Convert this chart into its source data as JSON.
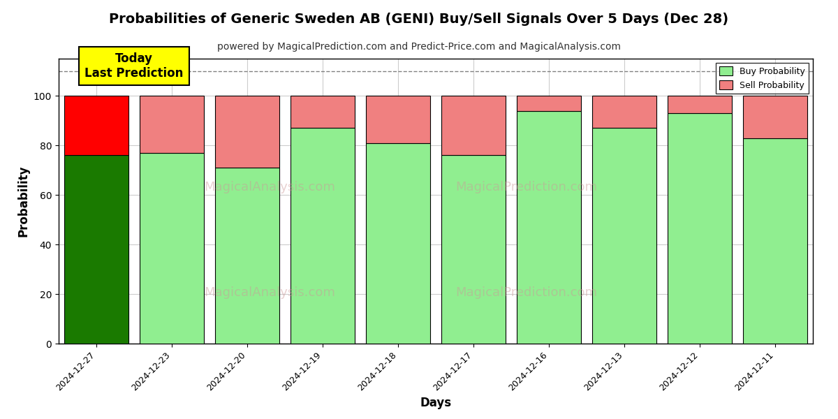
{
  "title": "Probabilities of Generic Sweden AB (GENI) Buy/Sell Signals Over 5 Days (Dec 28)",
  "subtitle": "powered by MagicalPrediction.com and Predict-Price.com and MagicalAnalysis.com",
  "xlabel": "Days",
  "ylabel": "Probability",
  "dates": [
    "2024-12-27",
    "2024-12-23",
    "2024-12-20",
    "2024-12-19",
    "2024-12-18",
    "2024-12-17",
    "2024-12-16",
    "2024-12-13",
    "2024-12-12",
    "2024-12-11"
  ],
  "buy_values": [
    76,
    77,
    71,
    87,
    81,
    76,
    94,
    87,
    93,
    83
  ],
  "sell_values": [
    24,
    23,
    29,
    13,
    19,
    24,
    6,
    13,
    7,
    17
  ],
  "buy_color_today": "#1a7a00",
  "sell_color_today": "#ff0000",
  "buy_color_normal": "#90ee90",
  "sell_color_normal": "#f08080",
  "bar_edge_color": "#000000",
  "today_label": "Today\nLast Prediction",
  "legend_buy": "Buy Probability",
  "legend_sell": "Sell Probability",
  "ylim": [
    0,
    115
  ],
  "dashed_line_y": 110,
  "background_color": "#ffffff",
  "watermark_color": "#cc9999",
  "grid_color": "#cccccc",
  "title_fontsize": 14,
  "subtitle_fontsize": 10
}
